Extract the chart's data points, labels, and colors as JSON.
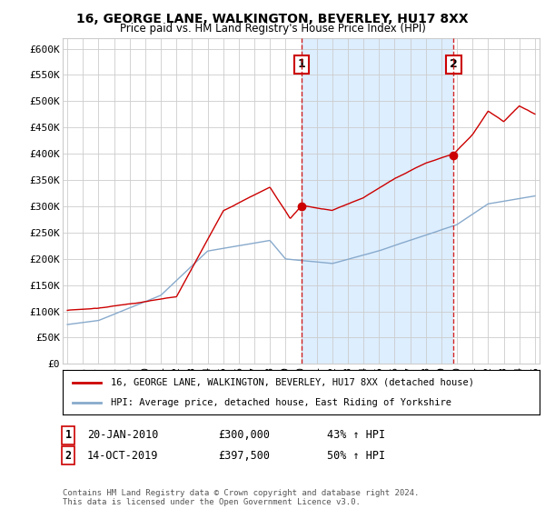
{
  "title": "16, GEORGE LANE, WALKINGTON, BEVERLEY, HU17 8XX",
  "subtitle": "Price paid vs. HM Land Registry's House Price Index (HPI)",
  "ylabel_ticks": [
    "£0",
    "£50K",
    "£100K",
    "£150K",
    "£200K",
    "£250K",
    "£300K",
    "£350K",
    "£400K",
    "£450K",
    "£500K",
    "£550K",
    "£600K"
  ],
  "ytick_values": [
    0,
    50000,
    100000,
    150000,
    200000,
    250000,
    300000,
    350000,
    400000,
    450000,
    500000,
    550000,
    600000
  ],
  "ylim": [
    0,
    620000
  ],
  "sale1": {
    "date_num": 2010.05,
    "price": 300000,
    "label": "1",
    "date_str": "20-JAN-2010",
    "hpi_pct": "43% ↑ HPI",
    "dot_y": 300000
  },
  "sale2": {
    "date_num": 2019.79,
    "price": 397500,
    "label": "2",
    "date_str": "14-OCT-2019",
    "hpi_pct": "50% ↑ HPI",
    "dot_y": 397500
  },
  "legend_line1": "16, GEORGE LANE, WALKINGTON, BEVERLEY, HU17 8XX (detached house)",
  "legend_line2": "HPI: Average price, detached house, East Riding of Yorkshire",
  "note": "Contains HM Land Registry data © Crown copyright and database right 2024.\nThis data is licensed under the Open Government Licence v3.0.",
  "line_color_red": "#cc0000",
  "line_color_blue": "#88aacc",
  "vline_color": "#cc0000",
  "highlight_color": "#ddeeff",
  "background_color": "#ffffff",
  "grid_color": "#cccccc",
  "xlim_start": 1994.7,
  "xlim_end": 2025.3
}
